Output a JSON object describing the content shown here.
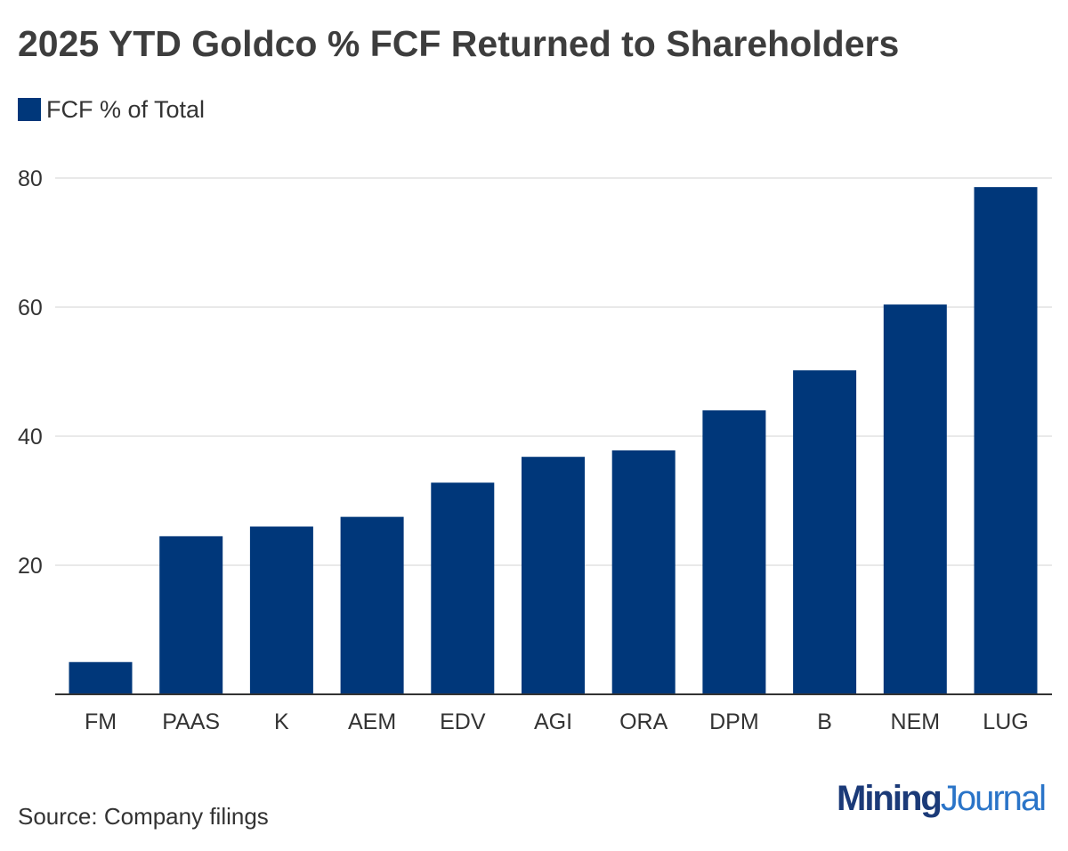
{
  "colors": {
    "bar": "#00377a",
    "grid": "#e2e2e2",
    "axis": "#333333",
    "logo_dark": "#1b3a78",
    "logo_light": "#2a74c8"
  },
  "legend": {
    "label": "FCF % of Total"
  },
  "source": "Source: Company filings",
  "logo": {
    "part1": "Mining",
    "part2": "Journal"
  },
  "chart_data": {
    "type": "bar",
    "title": "2025 YTD Goldco % FCF Returned to Shareholders",
    "xlabel": "",
    "ylabel": "",
    "categories": [
      "FM",
      "PAAS",
      "K",
      "AEM",
      "EDV",
      "AGI",
      "ORA",
      "DPM",
      "B",
      "NEM",
      "LUG"
    ],
    "series": [
      {
        "name": "FCF % of Total",
        "values": [
          5,
          24.5,
          26,
          27.5,
          32.8,
          36.8,
          37.8,
          44,
          50.2,
          60.4,
          78.6
        ]
      }
    ],
    "ylim": [
      0,
      80
    ],
    "yticks": [
      20,
      40,
      60,
      80
    ],
    "grid": true,
    "legend_position": "top-left"
  }
}
